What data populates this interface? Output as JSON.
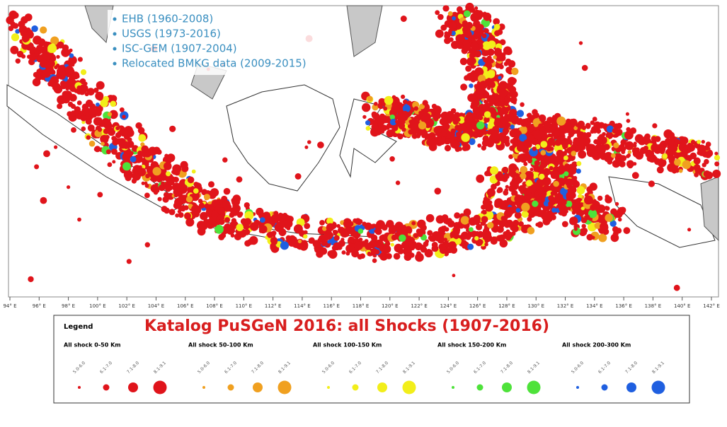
{
  "map": {
    "sources": [
      "EHB (1960-2008)",
      "USGS (1973-2016)",
      "ISC-GEM (1907-2004)",
      "Relocated BMKG data (2009-2015)"
    ],
    "lon_ticks": [
      "94° E",
      "96° E",
      "98° E",
      "100° E",
      "102° E",
      "104° E",
      "106° E",
      "108° E",
      "110° E",
      "112° E",
      "114° E",
      "116° E",
      "118° E",
      "120° E",
      "122° E",
      "124° E",
      "126° E",
      "128° E",
      "130° E",
      "132° E",
      "134° E",
      "136° E",
      "138° E",
      "140° E",
      "142° E"
    ]
  },
  "legend": {
    "heading": "Legend",
    "title": "Katalog PuSGeN 2016: all Shocks (1907-2016)",
    "groups": [
      {
        "label": "All shock 0-50 Km",
        "color": "#e0141b"
      },
      {
        "label": "All shock 50-100 Km",
        "color": "#f0a020"
      },
      {
        "label": "All shock 100-150 Km",
        "color": "#f2ee1a"
      },
      {
        "label": "All shock 150-200 Km",
        "color": "#4ee23a"
      },
      {
        "label": "All shock 200-300 Km",
        "color": "#1f5fe0"
      }
    ],
    "magnitudes": [
      "5.0-6.0",
      "6.1-7.0",
      "7.1-8.0",
      "8.1-9.1"
    ]
  }
}
